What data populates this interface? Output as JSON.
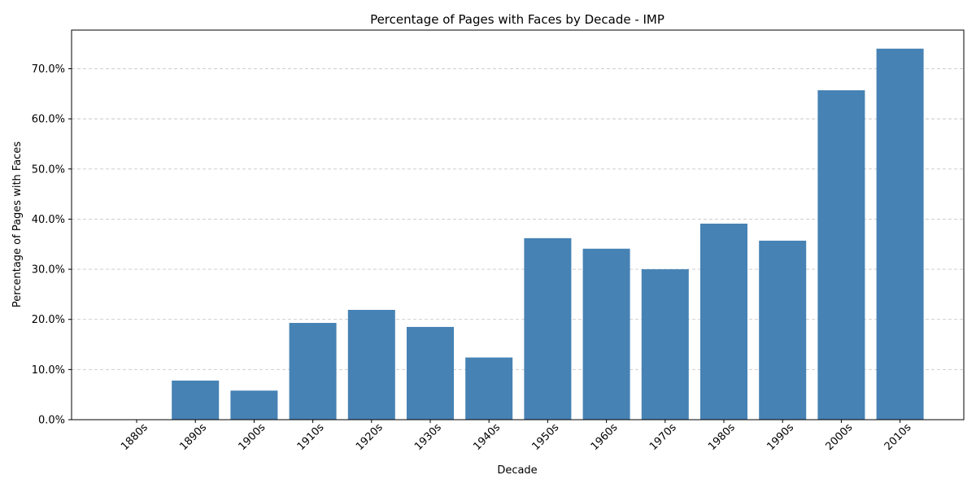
{
  "chart_data": {
    "type": "bar",
    "title": "Percentage of Pages with Faces by Decade - IMP",
    "xlabel": "Decade",
    "ylabel": "Percentage of Pages with Faces",
    "categories": [
      "1880s",
      "1890s",
      "1900s",
      "1910s",
      "1920s",
      "1930s",
      "1940s",
      "1950s",
      "1960s",
      "1970s",
      "1980s",
      "1990s",
      "2000s",
      "2010s"
    ],
    "values": [
      0.0,
      7.8,
      5.8,
      19.3,
      21.9,
      18.5,
      12.4,
      36.2,
      34.1,
      30.0,
      39.1,
      35.7,
      65.7,
      74.0
    ],
    "ylim": [
      0,
      77.7
    ],
    "yticks": [
      0,
      10,
      20,
      30,
      40,
      50,
      60,
      70
    ],
    "ytick_labels": [
      "0.0%",
      "10.0%",
      "20.0%",
      "30.0%",
      "40.0%",
      "50.0%",
      "60.0%",
      "70.0%"
    ],
    "bar_color": "#4682b4",
    "grid": "y-dashed",
    "legend": "none"
  }
}
